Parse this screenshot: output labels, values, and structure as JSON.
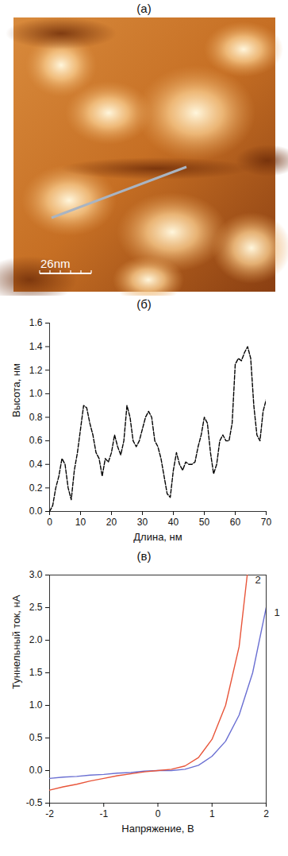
{
  "image_panel": {
    "title": "(а)",
    "scale_bar": "26nm"
  },
  "chart_data": [
    {
      "type": "line",
      "title": "(б)",
      "x_label": "Длина, нм",
      "y_label": "Высота, нм",
      "x": [
        0,
        1,
        2,
        3,
        4,
        5,
        6,
        7,
        8,
        9,
        10,
        11,
        12,
        13,
        14,
        15,
        16,
        17,
        18,
        19,
        20,
        21,
        22,
        23,
        24,
        25,
        26,
        27,
        28,
        29,
        30,
        31,
        32,
        33,
        34,
        35,
        36,
        37,
        38,
        39,
        40,
        41,
        42,
        43,
        44,
        45,
        46,
        47,
        48,
        49,
        50,
        51,
        52,
        53,
        54,
        55,
        56,
        57,
        58,
        59,
        60,
        61,
        62,
        63,
        64,
        65,
        66,
        67,
        68,
        69,
        70
      ],
      "series": [
        {
          "name": "Высота",
          "color": "#000000",
          "line_style": "dashed",
          "values": [
            0,
            0.05,
            0.2,
            0.3,
            0.45,
            0.4,
            0.2,
            0.1,
            0.35,
            0.5,
            0.7,
            0.9,
            0.88,
            0.75,
            0.65,
            0.5,
            0.45,
            0.3,
            0.45,
            0.42,
            0.5,
            0.65,
            0.55,
            0.48,
            0.6,
            0.9,
            0.8,
            0.6,
            0.55,
            0.6,
            0.7,
            0.8,
            0.85,
            0.8,
            0.6,
            0.55,
            0.45,
            0.3,
            0.15,
            0.12,
            0.35,
            0.5,
            0.4,
            0.35,
            0.42,
            0.4,
            0.4,
            0.42,
            0.55,
            0.65,
            0.8,
            0.75,
            0.5,
            0.32,
            0.4,
            0.6,
            0.65,
            0.6,
            0.6,
            0.75,
            1.25,
            1.3,
            1.28,
            1.35,
            1.4,
            1.3,
            0.9,
            0.65,
            0.6,
            0.85,
            0.95
          ]
        }
      ],
      "xlim": [
        0,
        70
      ],
      "xticks": [
        0,
        10,
        20,
        30,
        40,
        50,
        60,
        70
      ],
      "ylim": [
        0,
        1.6
      ],
      "yticks": [
        {
          "value": 0,
          "label": "0.0"
        },
        {
          "value": 0.2,
          "label": "0.2"
        },
        {
          "value": 0.4,
          "label": "0.4"
        },
        {
          "value": 0.6,
          "label": "0.6"
        },
        {
          "value": 0.8,
          "label": "0.8"
        },
        {
          "value": 1,
          "label": "1.0"
        },
        {
          "value": 1.2,
          "label": "1.2"
        },
        {
          "value": 1.4,
          "label": "1.4"
        },
        {
          "value": 1.6,
          "label": "1.6"
        }
      ],
      "grid": false
    },
    {
      "type": "line",
      "title": "(в)",
      "x_label": "Напряжение, В",
      "y_label": "Туннельный ток, нА",
      "series": [
        {
          "name": "1",
          "color": "#6a6fd2",
          "line_style": "solid",
          "x": [
            -2,
            -1.75,
            -1.5,
            -1.25,
            -1,
            -0.75,
            -0.5,
            -0.25,
            0,
            0.25,
            0.5,
            0.75,
            1,
            1.25,
            1.5,
            1.75,
            2
          ],
          "values": [
            -0.12,
            -0.1,
            -0.09,
            -0.07,
            -0.06,
            -0.04,
            -0.03,
            -0.01,
            0,
            0,
            0.02,
            0.08,
            0.22,
            0.45,
            0.85,
            1.5,
            2.5
          ]
        },
        {
          "name": "2",
          "color": "#e8553a",
          "line_style": "solid",
          "x": [
            -2,
            -1.75,
            -1.5,
            -1.25,
            -1,
            -0.75,
            -0.5,
            -0.25,
            0,
            0.25,
            0.5,
            0.75,
            1,
            1.25,
            1.5,
            1.65
          ],
          "values": [
            -0.3,
            -0.25,
            -0.21,
            -0.16,
            -0.12,
            -0.08,
            -0.05,
            -0.02,
            0,
            0.02,
            0.07,
            0.2,
            0.48,
            1,
            1.9,
            3
          ]
        }
      ],
      "xlim": [
        -2,
        2
      ],
      "xticks": [
        -2,
        -1,
        0,
        1,
        2
      ],
      "ylim": [
        -0.5,
        3
      ],
      "yticks": [
        -0.5,
        {
          "value": 0,
          "label": "0.0"
        },
        0.5,
        {
          "value": 1,
          "label": "1.0"
        },
        1.5,
        {
          "value": 2,
          "label": "2.0"
        },
        2.5,
        {
          "value": 3,
          "label": "3.0"
        }
      ],
      "grid": false
    }
  ]
}
